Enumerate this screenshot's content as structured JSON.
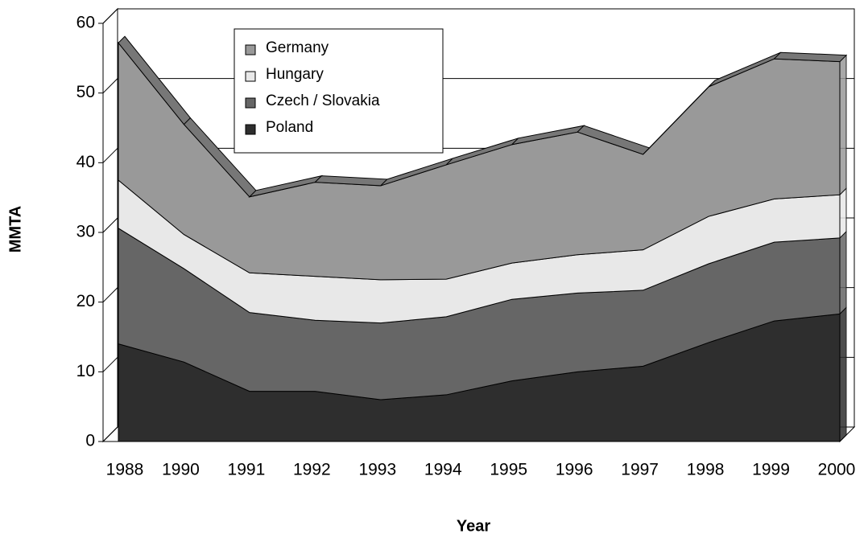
{
  "chart_data": {
    "type": "area3d",
    "x_label": "Year",
    "y_label": "MMTA",
    "categories": [
      "1988",
      "1990",
      "1991",
      "1992",
      "1993",
      "1994",
      "1995",
      "1996",
      "1997",
      "1998",
      "1999",
      "2000"
    ],
    "series": [
      {
        "name": "Poland",
        "color": "#2e2e2e",
        "values": [
          14,
          11.4,
          7.2,
          7.2,
          6,
          6.7,
          8.7,
          10,
          10.8,
          14.2,
          17.3,
          18.3
        ]
      },
      {
        "name": "Czech / Slovakia",
        "color": "#666666",
        "values": [
          16.6,
          13.4,
          11.3,
          10.2,
          11,
          11.2,
          11.7,
          11.3,
          10.9,
          11.3,
          11.3,
          10.9
        ]
      },
      {
        "name": "Hungary",
        "color": "#e8e8e8",
        "values": [
          6.9,
          4.9,
          5.7,
          6.3,
          6.2,
          5.4,
          5.2,
          5.5,
          5.8,
          6.8,
          6.2,
          6.2
        ]
      },
      {
        "name": "Germany",
        "color": "#999999",
        "values": [
          19.7,
          15.8,
          10.9,
          13.5,
          13.5,
          16.4,
          17,
          17.6,
          13.7,
          18.6,
          20.1,
          19.1
        ]
      }
    ],
    "legend_order": [
      3,
      2,
      1,
      0
    ],
    "ylim": [
      0,
      60
    ],
    "yticks": [
      0,
      10,
      20,
      30,
      40,
      50,
      60
    ],
    "grid": true
  }
}
